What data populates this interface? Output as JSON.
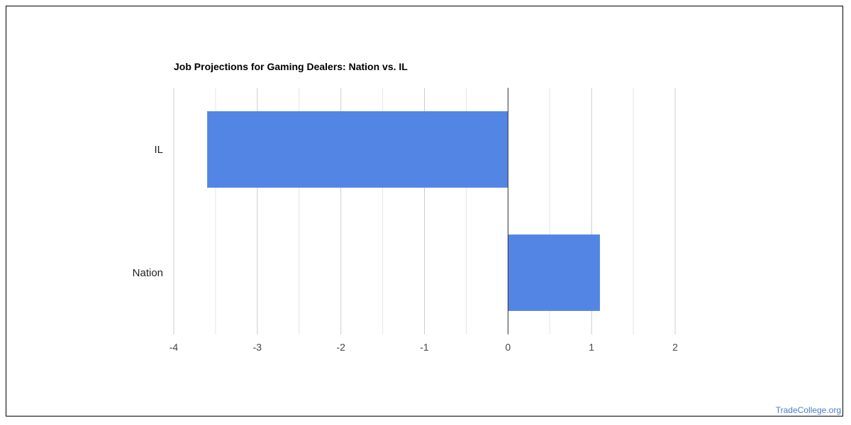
{
  "chart_data": {
    "type": "bar",
    "orientation": "horizontal",
    "title": "Job Projections for Gaming Dealers: Nation vs. IL",
    "categories": [
      "IL",
      "Nation"
    ],
    "series": [
      {
        "values": [
          -3.6,
          1.1
        ]
      }
    ],
    "xlim": [
      -4,
      2
    ],
    "xticks": [
      -4,
      -3,
      -2,
      -1,
      0,
      1,
      2
    ],
    "xtick_labels": [
      "-4",
      "-3",
      "-2",
      "-1",
      "0",
      "1",
      "2"
    ],
    "gridlines": true,
    "legend": "none",
    "colors": {
      "bar": "#5385e4",
      "gridline": "#cccccc",
      "minor_gridline": "#e6e6e6",
      "zero_line": "#333333"
    }
  },
  "watermark": "TradeCollege.org"
}
